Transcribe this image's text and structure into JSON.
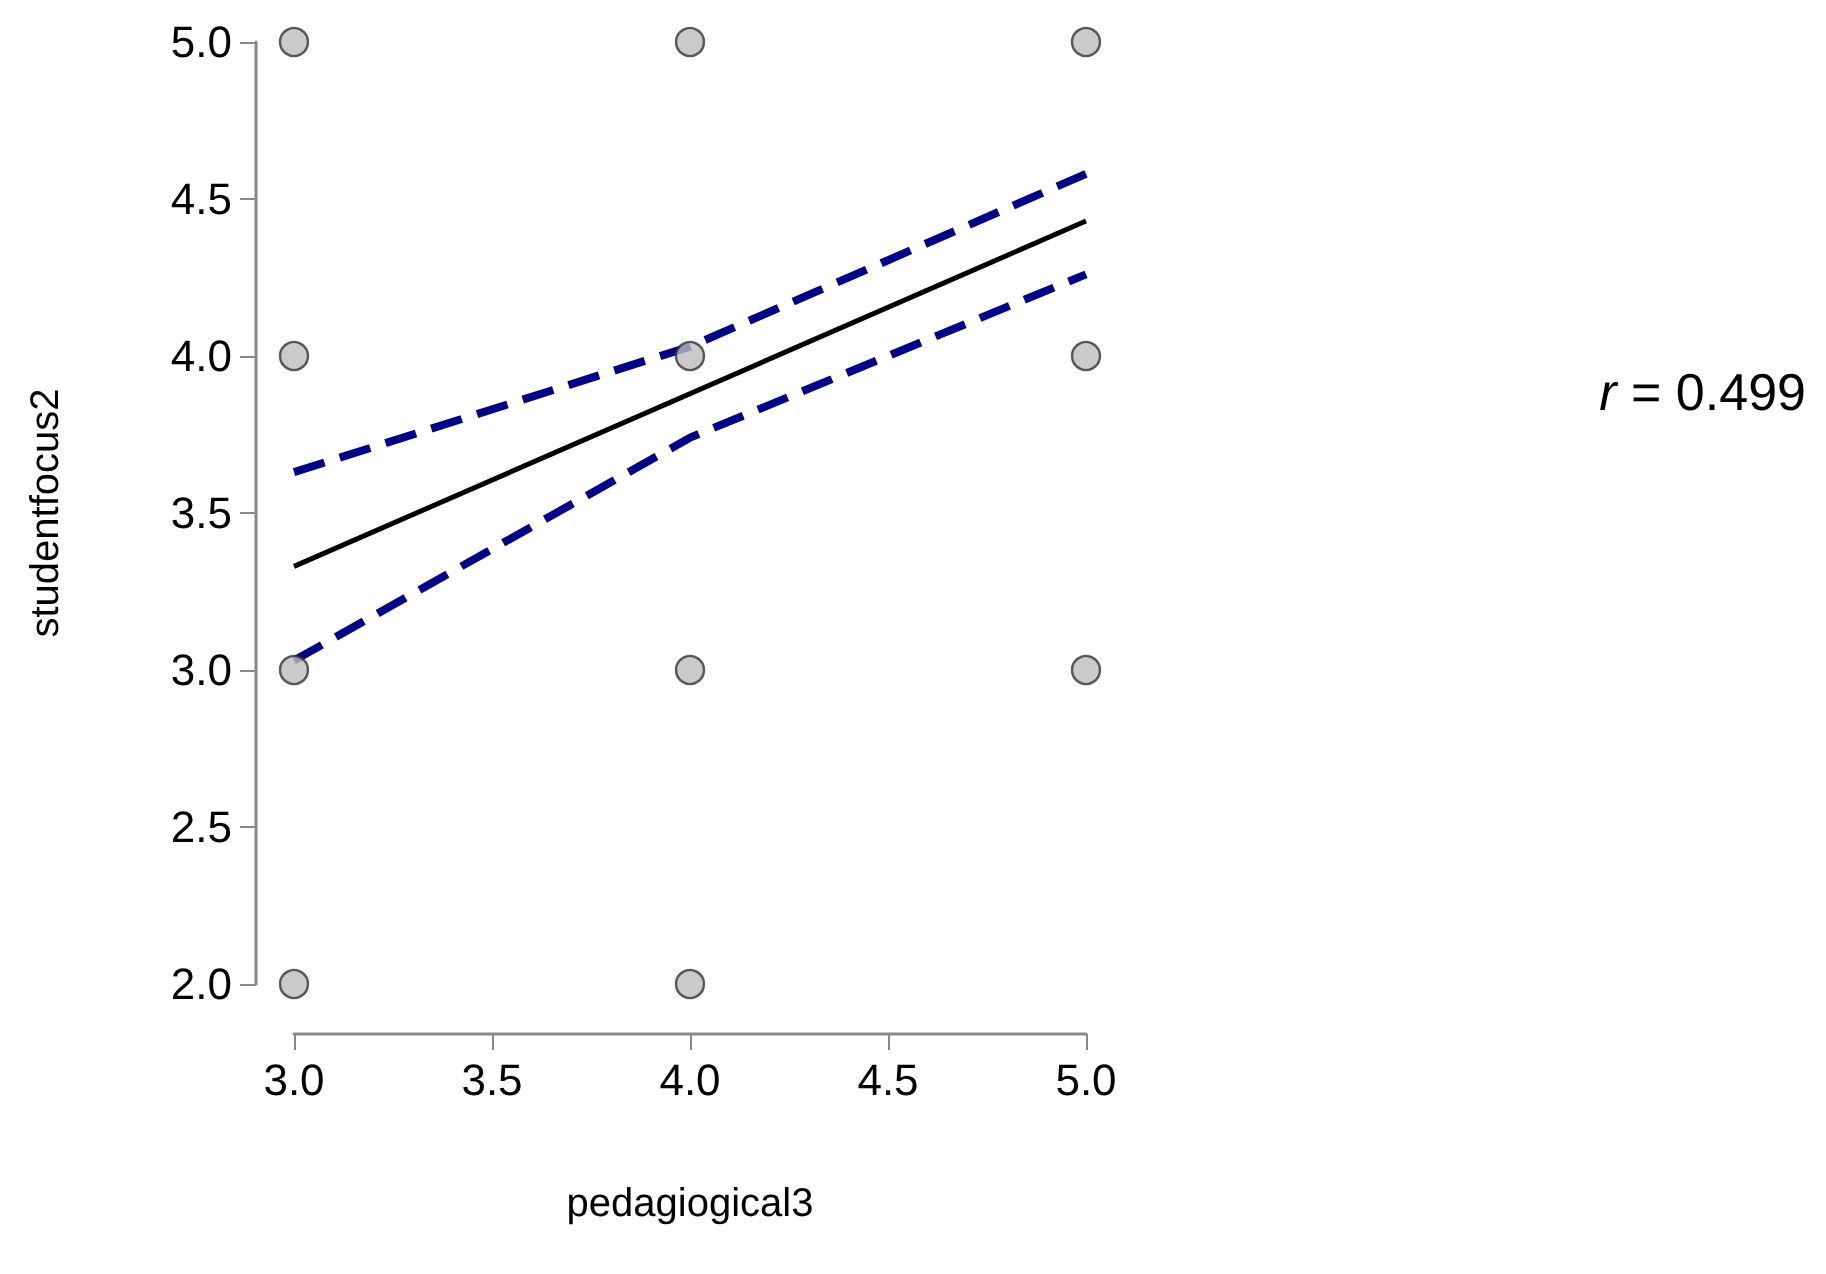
{
  "chart_data": {
    "type": "scatter",
    "xlabel": "pedagiogical3",
    "ylabel": "studentfocus2",
    "annotations": [
      "r = 0.499"
    ],
    "xlim": [
      3,
      5
    ],
    "xticks": [
      {
        "value": 3,
        "label": "3.0"
      },
      {
        "value": 3.5,
        "label": "3.5"
      },
      {
        "value": 4,
        "label": "4.0"
      },
      {
        "value": 4.5,
        "label": "4.5"
      },
      {
        "value": 5,
        "label": "5.0"
      }
    ],
    "ylim": [
      2,
      5
    ],
    "yticks": [
      {
        "value": 2,
        "label": "2.0"
      },
      {
        "value": 2.5,
        "label": "2.5"
      },
      {
        "value": 3,
        "label": "3.0"
      },
      {
        "value": 3.5,
        "label": "3.5"
      },
      {
        "value": 4,
        "label": "4.0"
      },
      {
        "value": 4.5,
        "label": "4.5"
      },
      {
        "value": 5,
        "label": "5.0"
      }
    ],
    "grid": false,
    "series": [
      {
        "color": "#bdbdbd",
        "marker": "circle",
        "x": [
          3,
          3,
          3,
          3,
          4,
          4,
          4,
          4,
          5,
          5,
          5
        ],
        "values": [
          5,
          4,
          3,
          2,
          5,
          4,
          3,
          2,
          5,
          4,
          3
        ]
      },
      {
        "type": "line",
        "color": "#000000",
        "marker": "none",
        "line_style": "solid",
        "x": [
          3,
          5
        ],
        "values": [
          3.33,
          4.43
        ]
      },
      {
        "type": "line",
        "color": "#00008b",
        "marker": "none",
        "line_style": "dashed",
        "x": [
          3,
          4,
          5
        ],
        "values": [
          3.63,
          4.03,
          4.58
        ]
      },
      {
        "type": "line",
        "color": "#00008b",
        "marker": "none",
        "line_style": "dashed",
        "x": [
          3,
          4,
          5
        ],
        "values": [
          3.03,
          3.74,
          4.26
        ]
      }
    ]
  }
}
